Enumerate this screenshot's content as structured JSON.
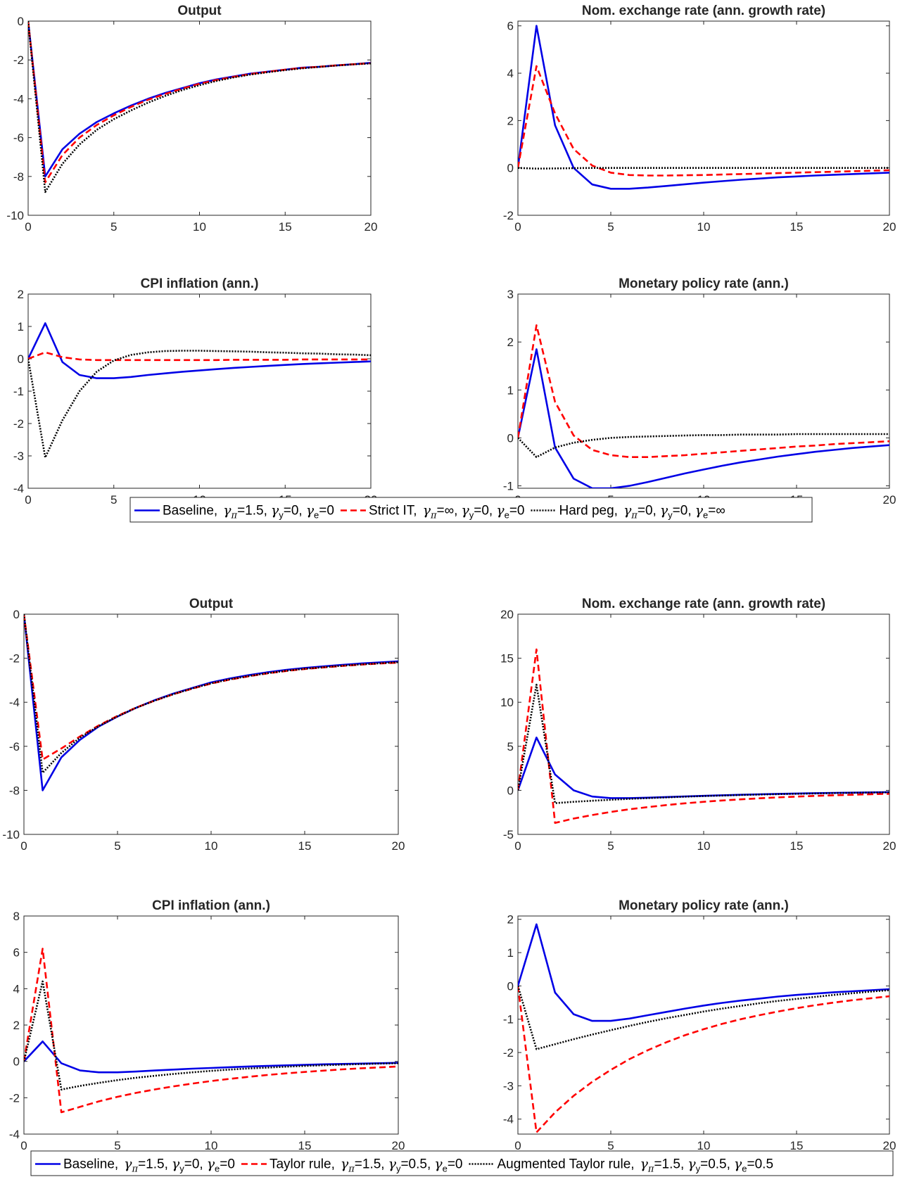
{
  "colors": {
    "baseline": "#0000e6",
    "alt1": "#ff0000",
    "alt2": "#000000",
    "axis": "#262626"
  },
  "chart_data": [
    {
      "type": "line",
      "title": "Output",
      "xlim": [
        0,
        20
      ],
      "ylim": [
        -10,
        0
      ],
      "xticks": [
        "0",
        "5",
        "10",
        "15",
        "20"
      ],
      "yticks": [
        "0",
        "-2",
        "-4",
        "-6",
        "-8",
        "-10"
      ],
      "x": [
        0,
        1,
        2,
        3,
        4,
        5,
        6,
        7,
        8,
        9,
        10,
        11,
        12,
        13,
        14,
        15,
        16,
        17,
        18,
        19,
        20
      ],
      "series": [
        {
          "key": "baseline",
          "style": "solid",
          "values": [
            0,
            -8.0,
            -6.6,
            -5.8,
            -5.2,
            -4.75,
            -4.35,
            -4.0,
            -3.7,
            -3.45,
            -3.2,
            -3.0,
            -2.85,
            -2.7,
            -2.6,
            -2.5,
            -2.4,
            -2.35,
            -2.28,
            -2.22,
            -2.15
          ]
        },
        {
          "key": "alt1",
          "style": "dashed",
          "values": [
            0,
            -8.3,
            -6.9,
            -6.0,
            -5.35,
            -4.85,
            -4.42,
            -4.05,
            -3.75,
            -3.48,
            -3.23,
            -3.03,
            -2.87,
            -2.72,
            -2.61,
            -2.5,
            -2.41,
            -2.35,
            -2.28,
            -2.22,
            -2.17
          ]
        },
        {
          "key": "alt2",
          "style": "dotted",
          "values": [
            0,
            -8.8,
            -7.35,
            -6.35,
            -5.6,
            -5.05,
            -4.6,
            -4.2,
            -3.85,
            -3.55,
            -3.3,
            -3.08,
            -2.9,
            -2.75,
            -2.63,
            -2.52,
            -2.43,
            -2.36,
            -2.29,
            -2.23,
            -2.18
          ]
        }
      ]
    },
    {
      "type": "line",
      "title": "Nom. exchange rate (ann. growth rate)",
      "xlim": [
        0,
        20
      ],
      "ylim": [
        -2,
        6.2
      ],
      "xticks": [
        "0",
        "5",
        "10",
        "15",
        "20"
      ],
      "yticks": [
        "6",
        "4",
        "2",
        "0",
        "-2"
      ],
      "x": [
        0,
        1,
        2,
        3,
        4,
        5,
        6,
        7,
        8,
        9,
        10,
        11,
        12,
        13,
        14,
        15,
        16,
        17,
        18,
        19,
        20
      ],
      "series": [
        {
          "key": "baseline",
          "style": "solid",
          "values": [
            0,
            6.0,
            1.8,
            0.0,
            -0.7,
            -0.88,
            -0.88,
            -0.83,
            -0.76,
            -0.69,
            -0.62,
            -0.56,
            -0.5,
            -0.45,
            -0.4,
            -0.36,
            -0.32,
            -0.29,
            -0.26,
            -0.23,
            -0.2
          ]
        },
        {
          "key": "alt1",
          "style": "dashed",
          "values": [
            0,
            4.3,
            2.3,
            0.8,
            0.1,
            -0.2,
            -0.3,
            -0.32,
            -0.32,
            -0.31,
            -0.3,
            -0.28,
            -0.26,
            -0.24,
            -0.22,
            -0.2,
            -0.18,
            -0.16,
            -0.14,
            -0.12,
            -0.1
          ]
        },
        {
          "key": "alt2",
          "style": "dotted",
          "values": [
            0,
            -0.03,
            -0.02,
            -0.01,
            0,
            0,
            0,
            0,
            0,
            0,
            0,
            0,
            0,
            0,
            0,
            0,
            0,
            0,
            0,
            0,
            0
          ]
        }
      ]
    },
    {
      "type": "line",
      "title": "CPI inflation (ann.)",
      "xlim": [
        0,
        20
      ],
      "ylim": [
        -4,
        2
      ],
      "xticks": [
        "0",
        "5",
        "10",
        "15",
        "20"
      ],
      "yticks": [
        "2",
        "1",
        "0",
        "-1",
        "-2",
        "-3",
        "-4"
      ],
      "x": [
        0,
        1,
        2,
        3,
        4,
        5,
        6,
        7,
        8,
        9,
        10,
        11,
        12,
        13,
        14,
        15,
        16,
        17,
        18,
        19,
        20
      ],
      "series": [
        {
          "key": "baseline",
          "style": "solid",
          "values": [
            0,
            1.1,
            -0.1,
            -0.5,
            -0.6,
            -0.6,
            -0.56,
            -0.5,
            -0.45,
            -0.4,
            -0.36,
            -0.32,
            -0.28,
            -0.25,
            -0.22,
            -0.19,
            -0.16,
            -0.14,
            -0.12,
            -0.1,
            -0.08
          ]
        },
        {
          "key": "alt1",
          "style": "dashed",
          "values": [
            0,
            0.2,
            0.05,
            -0.02,
            -0.04,
            -0.04,
            -0.04,
            -0.04,
            -0.04,
            -0.04,
            -0.04,
            -0.04,
            -0.03,
            -0.03,
            -0.03,
            -0.03,
            -0.02,
            -0.02,
            -0.02,
            -0.02,
            -0.02
          ]
        },
        {
          "key": "alt2",
          "style": "dotted",
          "values": [
            0,
            -3.05,
            -1.9,
            -1.0,
            -0.4,
            -0.05,
            0.12,
            0.2,
            0.24,
            0.25,
            0.25,
            0.24,
            0.23,
            0.22,
            0.2,
            0.19,
            0.17,
            0.16,
            0.14,
            0.13,
            0.11
          ]
        }
      ]
    },
    {
      "type": "line",
      "title": "Monetary policy rate (ann.)",
      "xlim": [
        0,
        20
      ],
      "ylim": [
        -1.05,
        3
      ],
      "xticks": [
        "0",
        "5",
        "10",
        "15",
        "20"
      ],
      "yticks": [
        "3",
        "2",
        "1",
        "0",
        "-1"
      ],
      "x": [
        0,
        1,
        2,
        3,
        4,
        5,
        6,
        7,
        8,
        9,
        10,
        11,
        12,
        13,
        14,
        15,
        16,
        17,
        18,
        19,
        20
      ],
      "series": [
        {
          "key": "baseline",
          "style": "solid",
          "values": [
            0,
            1.85,
            -0.2,
            -0.85,
            -1.05,
            -1.05,
            -1.0,
            -0.92,
            -0.83,
            -0.74,
            -0.66,
            -0.58,
            -0.51,
            -0.45,
            -0.39,
            -0.34,
            -0.29,
            -0.25,
            -0.21,
            -0.18,
            -0.15
          ]
        },
        {
          "key": "alt1",
          "style": "dashed",
          "values": [
            0,
            2.35,
            0.75,
            0.05,
            -0.25,
            -0.36,
            -0.4,
            -0.4,
            -0.38,
            -0.36,
            -0.33,
            -0.3,
            -0.27,
            -0.24,
            -0.21,
            -0.18,
            -0.16,
            -0.13,
            -0.11,
            -0.09,
            -0.07
          ]
        },
        {
          "key": "alt2",
          "style": "dotted",
          "values": [
            0,
            -0.4,
            -0.2,
            -0.1,
            -0.04,
            0,
            0.02,
            0.03,
            0.04,
            0.05,
            0.06,
            0.06,
            0.07,
            0.07,
            0.07,
            0.08,
            0.08,
            0.08,
            0.08,
            0.08,
            0.08
          ]
        }
      ]
    },
    {
      "type": "line",
      "title": "Output",
      "xlim": [
        0,
        20
      ],
      "ylim": [
        -10,
        0
      ],
      "xticks": [
        "0",
        "5",
        "10",
        "15",
        "20"
      ],
      "yticks": [
        "0",
        "-2",
        "-4",
        "-6",
        "-8",
        "-10"
      ],
      "x": [
        0,
        1,
        2,
        3,
        4,
        5,
        6,
        7,
        8,
        9,
        10,
        11,
        12,
        13,
        14,
        15,
        16,
        17,
        18,
        19,
        20
      ],
      "series": [
        {
          "key": "baseline",
          "style": "solid",
          "values": [
            0,
            -8.0,
            -6.5,
            -5.7,
            -5.1,
            -4.65,
            -4.25,
            -3.9,
            -3.6,
            -3.35,
            -3.1,
            -2.92,
            -2.77,
            -2.64,
            -2.53,
            -2.44,
            -2.37,
            -2.3,
            -2.24,
            -2.19,
            -2.14
          ]
        },
        {
          "key": "alt1",
          "style": "dashed",
          "values": [
            0,
            -6.6,
            -6.1,
            -5.55,
            -5.05,
            -4.62,
            -4.24,
            -3.92,
            -3.63,
            -3.38,
            -3.15,
            -2.97,
            -2.82,
            -2.69,
            -2.58,
            -2.49,
            -2.42,
            -2.35,
            -2.29,
            -2.24,
            -2.2
          ]
        },
        {
          "key": "alt2",
          "style": "dotted",
          "values": [
            0,
            -7.2,
            -6.3,
            -5.6,
            -5.08,
            -4.64,
            -4.25,
            -3.92,
            -3.63,
            -3.37,
            -3.14,
            -2.96,
            -2.81,
            -2.68,
            -2.57,
            -2.48,
            -2.41,
            -2.34,
            -2.28,
            -2.23,
            -2.18
          ]
        }
      ]
    },
    {
      "type": "line",
      "title": "Nom. exchange rate (ann. growth rate)",
      "xlim": [
        0,
        20
      ],
      "ylim": [
        -5,
        20
      ],
      "xticks": [
        "0",
        "5",
        "10",
        "15",
        "20"
      ],
      "yticks": [
        "20",
        "15",
        "10",
        "5",
        "0",
        "-5"
      ],
      "x": [
        0,
        1,
        2,
        3,
        4,
        5,
        6,
        7,
        8,
        9,
        10,
        11,
        12,
        13,
        14,
        15,
        16,
        17,
        18,
        19,
        20
      ],
      "series": [
        {
          "key": "baseline",
          "style": "solid",
          "values": [
            0,
            6.0,
            1.8,
            0,
            -0.7,
            -0.88,
            -0.88,
            -0.83,
            -0.76,
            -0.69,
            -0.62,
            -0.56,
            -0.5,
            -0.45,
            -0.4,
            -0.36,
            -0.32,
            -0.29,
            -0.26,
            -0.23,
            -0.2
          ]
        },
        {
          "key": "alt1",
          "style": "dashed",
          "values": [
            0,
            16.0,
            -3.7,
            -3.2,
            -2.8,
            -2.45,
            -2.15,
            -1.9,
            -1.67,
            -1.47,
            -1.3,
            -1.15,
            -1.02,
            -0.9,
            -0.8,
            -0.71,
            -0.63,
            -0.56,
            -0.5,
            -0.44,
            -0.39
          ]
        },
        {
          "key": "alt2",
          "style": "dotted",
          "values": [
            0,
            12.0,
            -1.45,
            -1.3,
            -1.18,
            -1.07,
            -0.97,
            -0.88,
            -0.8,
            -0.72,
            -0.65,
            -0.59,
            -0.53,
            -0.48,
            -0.43,
            -0.39,
            -0.35,
            -0.31,
            -0.28,
            -0.25,
            -0.22
          ]
        }
      ]
    },
    {
      "type": "line",
      "title": "CPI inflation (ann.)",
      "xlim": [
        0,
        20
      ],
      "ylim": [
        -4,
        8
      ],
      "xticks": [
        "0",
        "5",
        "10",
        "15",
        "20"
      ],
      "yticks": [
        "8",
        "6",
        "4",
        "2",
        "0",
        "-2",
        "-4"
      ],
      "x": [
        0,
        1,
        2,
        3,
        4,
        5,
        6,
        7,
        8,
        9,
        10,
        11,
        12,
        13,
        14,
        15,
        16,
        17,
        18,
        19,
        20
      ],
      "series": [
        {
          "key": "baseline",
          "style": "solid",
          "values": [
            0,
            1.1,
            -0.1,
            -0.5,
            -0.6,
            -0.6,
            -0.56,
            -0.5,
            -0.45,
            -0.4,
            -0.36,
            -0.32,
            -0.28,
            -0.25,
            -0.22,
            -0.19,
            -0.16,
            -0.14,
            -0.12,
            -0.1,
            -0.08
          ]
        },
        {
          "key": "alt1",
          "style": "dashed",
          "values": [
            0,
            6.2,
            -2.8,
            -2.5,
            -2.2,
            -1.95,
            -1.73,
            -1.54,
            -1.37,
            -1.22,
            -1.08,
            -0.96,
            -0.85,
            -0.75,
            -0.66,
            -0.58,
            -0.51,
            -0.44,
            -0.38,
            -0.33,
            -0.28
          ]
        },
        {
          "key": "alt2",
          "style": "dotted",
          "values": [
            0,
            4.4,
            -1.55,
            -1.35,
            -1.18,
            -1.03,
            -0.9,
            -0.79,
            -0.69,
            -0.6,
            -0.52,
            -0.45,
            -0.39,
            -0.34,
            -0.29,
            -0.25,
            -0.21,
            -0.18,
            -0.15,
            -0.12,
            -0.1
          ]
        }
      ]
    },
    {
      "type": "line",
      "title": "Monetary policy rate (ann.)",
      "xlim": [
        0,
        20
      ],
      "ylim": [
        -4.45,
        2.1
      ],
      "xticks": [
        "0",
        "5",
        "10",
        "15",
        "20"
      ],
      "yticks": [
        "2",
        "1",
        "0",
        "-1",
        "-2",
        "-3",
        "-4"
      ],
      "x": [
        0,
        1,
        2,
        3,
        4,
        5,
        6,
        7,
        8,
        9,
        10,
        11,
        12,
        13,
        14,
        15,
        16,
        17,
        18,
        19,
        20
      ],
      "series": [
        {
          "key": "baseline",
          "style": "solid",
          "values": [
            0,
            1.85,
            -0.2,
            -0.85,
            -1.05,
            -1.05,
            -0.98,
            -0.88,
            -0.78,
            -0.68,
            -0.59,
            -0.51,
            -0.44,
            -0.38,
            -0.32,
            -0.27,
            -0.23,
            -0.19,
            -0.16,
            -0.13,
            -0.1
          ]
        },
        {
          "key": "alt1",
          "style": "dashed",
          "values": [
            0,
            -4.4,
            -3.8,
            -3.3,
            -2.88,
            -2.52,
            -2.2,
            -1.93,
            -1.69,
            -1.48,
            -1.3,
            -1.14,
            -1.0,
            -0.88,
            -0.77,
            -0.67,
            -0.58,
            -0.5,
            -0.43,
            -0.37,
            -0.31
          ]
        },
        {
          "key": "alt2",
          "style": "dotted",
          "values": [
            0,
            -1.9,
            -1.75,
            -1.6,
            -1.46,
            -1.33,
            -1.2,
            -1.08,
            -0.97,
            -0.87,
            -0.77,
            -0.68,
            -0.6,
            -0.52,
            -0.45,
            -0.39,
            -0.33,
            -0.27,
            -0.22,
            -0.17,
            -0.13
          ]
        }
      ]
    }
  ],
  "legends": [
    {
      "entries": [
        {
          "key": "baseline",
          "style": "solid",
          "label": "Baseline,",
          "params": [
            [
              "π",
              "=1.5,"
            ],
            [
              "y",
              "=0,"
            ],
            [
              "e",
              "=0"
            ]
          ]
        },
        {
          "key": "alt1",
          "style": "dashed",
          "label": "Strict IT,",
          "params": [
            [
              "π",
              "=∞,"
            ],
            [
              "y",
              "=0,"
            ],
            [
              "e",
              "=0"
            ]
          ]
        },
        {
          "key": "alt2",
          "style": "dotted",
          "label": "Hard peg,",
          "params": [
            [
              "π",
              "=0,"
            ],
            [
              "y",
              "=0,"
            ],
            [
              "e",
              "=∞"
            ]
          ]
        }
      ]
    },
    {
      "entries": [
        {
          "key": "baseline",
          "style": "solid",
          "label": "Baseline,",
          "params": [
            [
              "π",
              "=1.5,"
            ],
            [
              "y",
              "=0,"
            ],
            [
              "e",
              "=0"
            ]
          ]
        },
        {
          "key": "alt1",
          "style": "dashed",
          "label": "Taylor rule,",
          "params": [
            [
              "π",
              "=1.5,"
            ],
            [
              "y",
              "=0.5,"
            ],
            [
              "e",
              "=0"
            ]
          ]
        },
        {
          "key": "alt2",
          "style": "dotted",
          "label": "Augmented Taylor rule,",
          "params": [
            [
              "π",
              "=1.5,"
            ],
            [
              "y",
              "=0.5,"
            ],
            [
              "e",
              "=0.5"
            ]
          ]
        }
      ]
    }
  ]
}
